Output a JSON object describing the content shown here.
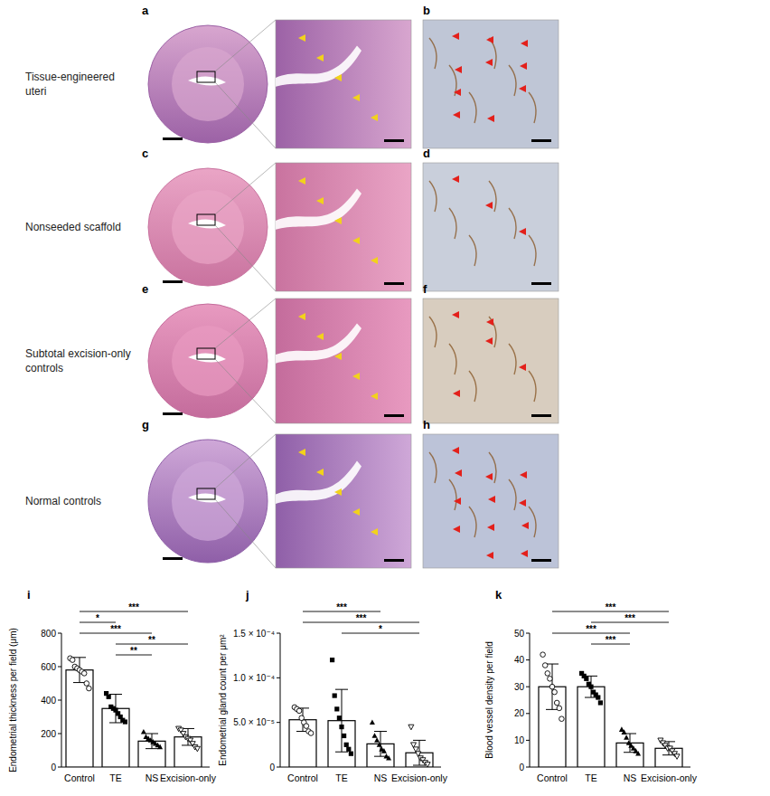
{
  "figure": {
    "rows": [
      {
        "row_label": [
          "Tissue-engineered",
          "uteri"
        ],
        "letters": [
          "a",
          "b"
        ]
      },
      {
        "row_label": [
          "Nonseeded scaffold"
        ],
        "letters": [
          "c",
          "d"
        ]
      },
      {
        "row_label": [
          "Subtotal excision-only",
          "controls"
        ],
        "letters": [
          "e",
          "f"
        ]
      },
      {
        "row_label": [
          "Normal controls"
        ],
        "letters": [
          "g",
          "h"
        ]
      }
    ]
  },
  "chart_data": [
    {
      "type": "bar",
      "panel": "i",
      "y_label": "Endometrial thickness per field (μm)",
      "categories": [
        "Control",
        "TE",
        "NS",
        "Excision-only"
      ],
      "values": [
        580,
        350,
        155,
        180
      ],
      "errors": [
        75,
        85,
        45,
        50
      ],
      "points": [
        [
          650,
          640,
          600,
          590,
          580,
          570,
          560,
          500,
          470
        ],
        [
          440,
          420,
          360,
          350,
          340,
          320,
          300,
          280,
          270
        ],
        [
          210,
          180,
          170,
          160,
          150,
          140,
          130,
          120
        ],
        [
          230,
          220,
          200,
          180,
          170,
          160,
          140,
          120,
          110
        ]
      ],
      "ylim": [
        0,
        800
      ],
      "yticks": [
        0,
        200,
        400,
        600,
        800
      ],
      "annotations": [
        {
          "from": 0,
          "to": 3,
          "label": "***"
        },
        {
          "from": 0,
          "to": 1,
          "label": "*"
        },
        {
          "from": 0,
          "to": 2,
          "label": "***"
        },
        {
          "from": 1,
          "to": 3,
          "label": "**"
        },
        {
          "from": 1,
          "to": 2,
          "label": "**"
        }
      ]
    },
    {
      "type": "bar",
      "panel": "j",
      "y_label": "Endometrial gland count per μm²",
      "categories": [
        "Control",
        "TE",
        "NS",
        "Excision-only"
      ],
      "values": [
        5.3e-05,
        5.2e-05,
        2.6e-05,
        1.6e-05
      ],
      "errors": [
        1.3e-05,
        3.5e-05,
        1.4e-05,
        1.4e-05
      ],
      "points": [
        [
          6.7e-05,
          6.5e-05,
          6.3e-05,
          5.5e-05,
          5e-05,
          4.6e-05,
          4e-05,
          3.8e-05
        ],
        [
          0.00012,
          8e-05,
          6.5e-05,
          5.5e-05,
          4.5e-05,
          3.5e-05,
          2.5e-05,
          2e-05,
          1.5e-05
        ],
        [
          5e-05,
          3.5e-05,
          3e-05,
          2.5e-05,
          2e-05,
          1.8e-05,
          1.2e-05,
          1e-05
        ],
        [
          4.5e-05,
          2.5e-05,
          2e-05,
          1.5e-05,
          1e-05,
          8e-06,
          5e-06,
          3e-06
        ]
      ],
      "ylim": [
        0,
        0.00015
      ],
      "yticks": [
        0,
        {
          "value": 5e-05,
          "label": "5.0 × 10⁻⁵"
        },
        {
          "value": 0.0001,
          "label": "1.0 × 10⁻⁴"
        },
        {
          "value": 0.00015,
          "label": "1.5 × 10⁻⁴"
        }
      ],
      "annotations": [
        {
          "from": 0,
          "to": 2,
          "label": "***"
        },
        {
          "from": 0,
          "to": 3,
          "label": "***"
        },
        {
          "from": 1,
          "to": 3,
          "label": "*"
        }
      ]
    },
    {
      "type": "bar",
      "panel": "k",
      "y_label": "Blood vessel density per field",
      "categories": [
        "Control",
        "TE",
        "NS",
        "Excision-only"
      ],
      "values": [
        30,
        30,
        9,
        7
      ],
      "errors": [
        8.5,
        4,
        3.5,
        2.5
      ],
      "points": [
        [
          42,
          38,
          35,
          33,
          30,
          28,
          24,
          22,
          18
        ],
        [
          35,
          34,
          33,
          31,
          30,
          28,
          27,
          26,
          24
        ],
        [
          14,
          13,
          11,
          9,
          8,
          7,
          6,
          5
        ],
        [
          10,
          9,
          8,
          7,
          7,
          6,
          5,
          4
        ]
      ],
      "ylim": [
        0,
        50
      ],
      "yticks": [
        0,
        10,
        20,
        30,
        40,
        50
      ],
      "annotations": [
        {
          "from": 0,
          "to": 3,
          "label": "***"
        },
        {
          "from": 1,
          "to": 3,
          "label": "***"
        },
        {
          "from": 0,
          "to": 2,
          "label": "***"
        },
        {
          "from": 1,
          "to": 2,
          "label": "***"
        }
      ]
    }
  ]
}
